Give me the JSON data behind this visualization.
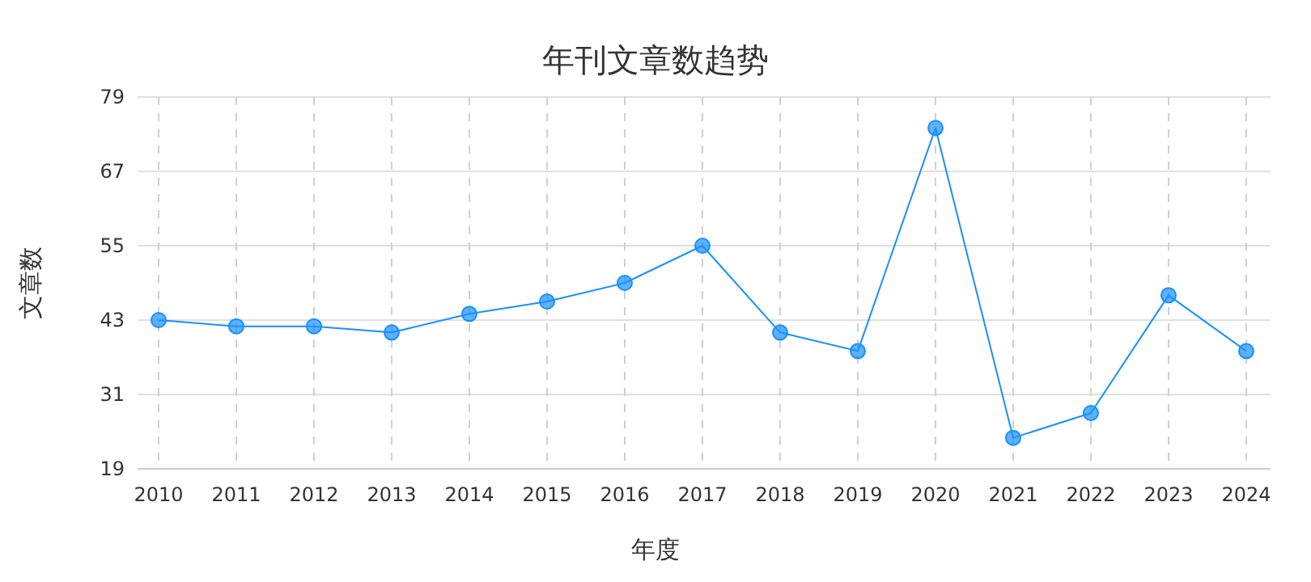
{
  "chart_data": {
    "type": "line",
    "title": "年刊文章数趋势",
    "xlabel": "年度",
    "ylabel": "文章数",
    "categories": [
      "2010",
      "2011",
      "2012",
      "2013",
      "2014",
      "2015",
      "2016",
      "2017",
      "2018",
      "2019",
      "2020",
      "2021",
      "2022",
      "2023",
      "2024"
    ],
    "series": [
      {
        "color": "#1890ff",
        "values": [
          43,
          42,
          42,
          41,
          44,
          46,
          49,
          55,
          41,
          38,
          74,
          24,
          28,
          47,
          38
        ]
      }
    ],
    "ylim": [
      19,
      79
    ],
    "yticks": [
      19,
      31,
      43,
      55,
      67,
      79
    ],
    "grid": true,
    "marker": "circle",
    "line_style": "solid"
  }
}
